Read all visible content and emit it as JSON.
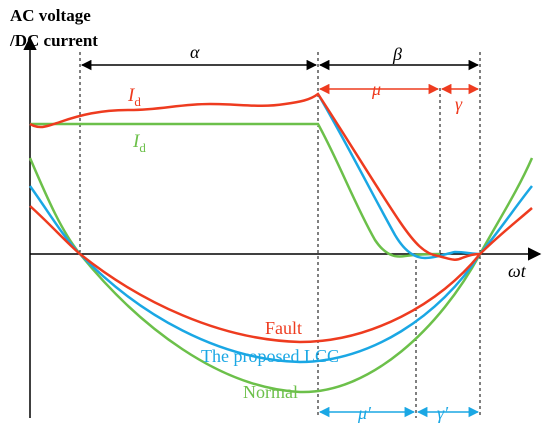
{
  "y_axis_label_line1": "AC voltage",
  "y_axis_label_line2": "/DC current",
  "x_axis_label": "ωt",
  "angles": {
    "alpha": "α",
    "beta": "β",
    "mu": "μ",
    "gamma": "γ",
    "mu_prime": "μ′",
    "gamma_prime": "γ′"
  },
  "current_labels": {
    "id_red_main": "I",
    "id_red_sub": "d",
    "id_green_main": "I",
    "id_green_sub": "d"
  },
  "curve_labels": {
    "fault": "Fault",
    "proposed": "The proposed LCC",
    "normal": "Normal"
  },
  "colors": {
    "fault": "#ee3b1f",
    "proposed": "#1aa7e4",
    "normal": "#6cc04a",
    "axis": "#000000"
  }
}
